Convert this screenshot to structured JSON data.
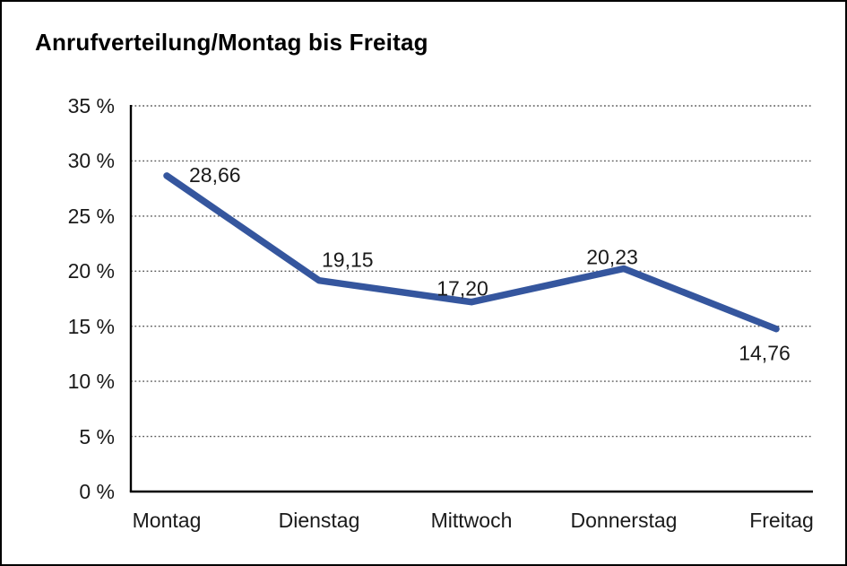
{
  "window": {
    "background": "#ffffff",
    "border_color": "#000000"
  },
  "chart_data": {
    "type": "line",
    "title": "Anrufverteilung/Montag bis Freitag",
    "categories": [
      "Montag",
      "Dienstag",
      "Mittwoch",
      "Donnerstag",
      "Freitag"
    ],
    "series": [
      {
        "name": "Anrufverteilung",
        "values": [
          28.66,
          19.15,
          17.2,
          20.23,
          14.76
        ]
      }
    ],
    "value_labels": [
      "28,66",
      "19,15",
      "17,20",
      "20,23",
      "14,76"
    ],
    "xlabel": "",
    "ylabel": "",
    "ylim": [
      0,
      35
    ],
    "ytick_step": 5,
    "ytick_labels": [
      "35 %",
      "30 %",
      "25 %",
      "20 %",
      "15 %",
      "10 %",
      "5 %",
      "0 %"
    ],
    "grid": "horizontal-dotted",
    "legend_position": "none",
    "line_color": "#35569E",
    "grid_color": "#5a5a5a",
    "axis_color": "#000000",
    "text_color": "#1a1a1a"
  }
}
